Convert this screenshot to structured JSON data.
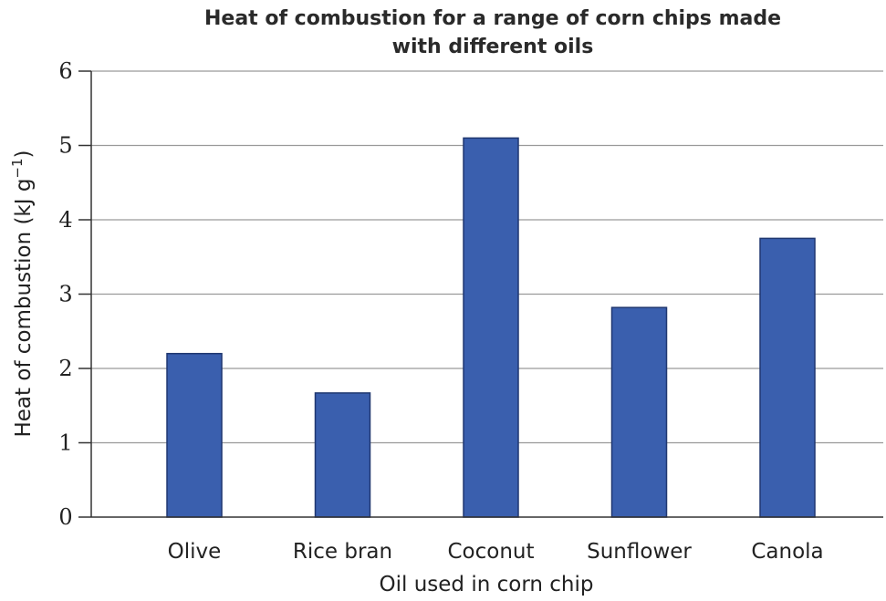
{
  "chart_data": {
    "type": "bar",
    "title_lines": [
      "Heat of combustion for a range of corn chips made",
      "with different oils"
    ],
    "xlabel": "Oil used in corn chip",
    "ylabel_parts": [
      "Heat of combustion (kJ g",
      "−1",
      ")"
    ],
    "categories": [
      "Olive",
      "Rice bran",
      "Coconut",
      "Sunflower",
      "Canola"
    ],
    "values": [
      2.2,
      1.67,
      5.1,
      2.82,
      3.75
    ],
    "ylim": [
      0,
      6
    ],
    "yticks": [
      "0",
      "1",
      "2",
      "3",
      "4",
      "5",
      "6"
    ],
    "grid": true,
    "colors": {
      "bar": "#3a5fae",
      "bar_edge": "#1f3770"
    }
  }
}
